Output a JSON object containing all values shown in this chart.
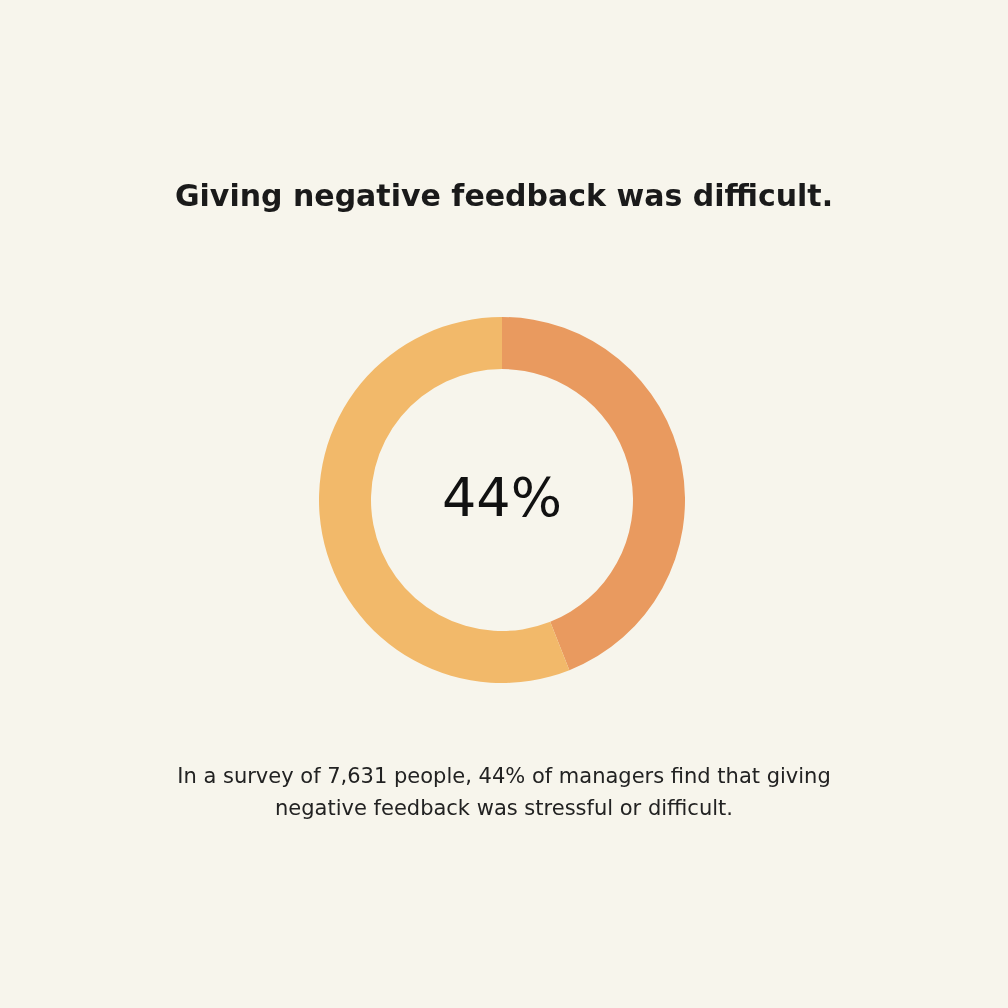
{
  "chart_data": {
    "type": "donut",
    "title": "Giving negative feedback was difficult.",
    "categories": [
      null,
      null
    ],
    "values": [
      44,
      56
    ],
    "colors": [
      "#e99a5f",
      "#f2b96a"
    ],
    "value_labels": [
      "44%",
      null
    ],
    "annotations": [
      "In a survey of 7,631 people, 44% of managers find that giving negative feedback was stressful or difficult."
    ]
  }
}
